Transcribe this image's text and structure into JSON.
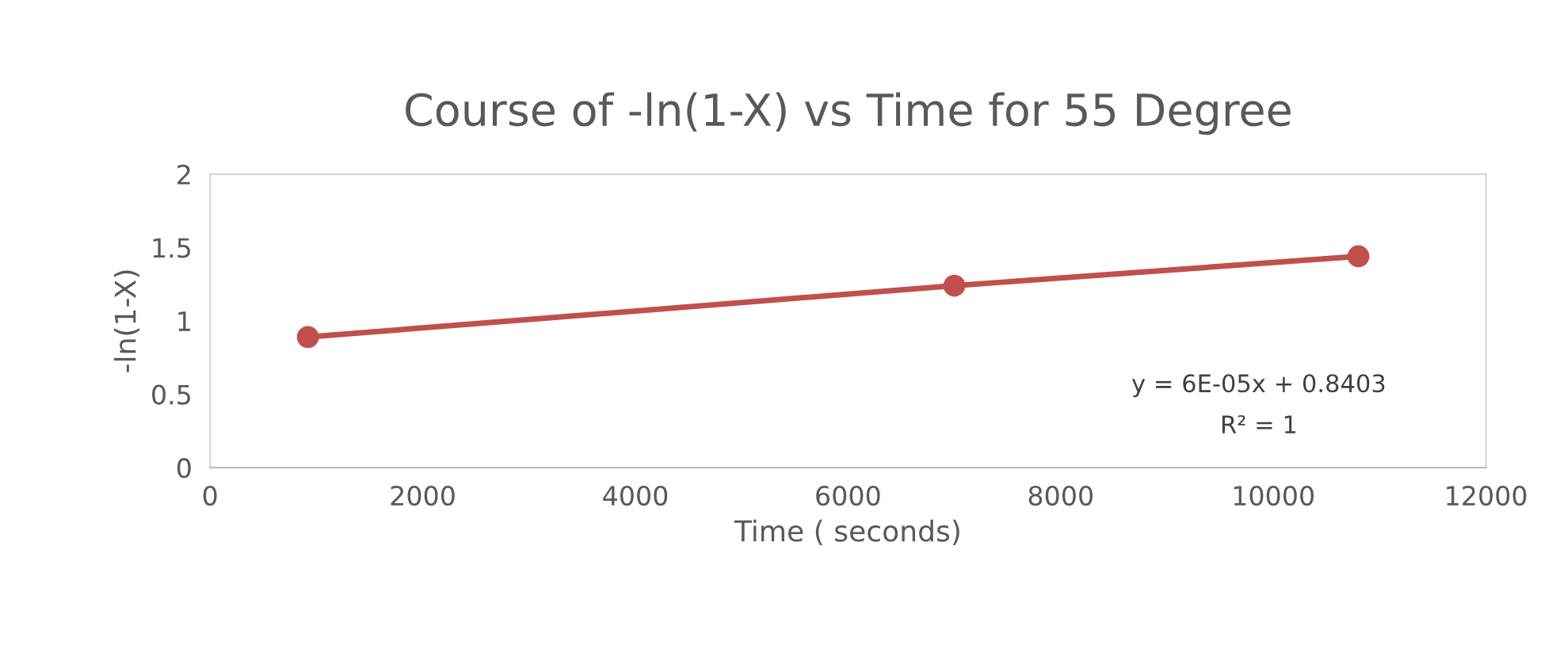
{
  "chart_data": {
    "type": "line",
    "title": "Course of -ln(1-X) vs Time for 55 Degree",
    "xlabel": "Time ( seconds)",
    "ylabel": "-ln(1-X)",
    "x": [
      920,
      7000,
      10800
    ],
    "series": [
      {
        "color": "#c0504d",
        "values": [
          0.89,
          1.24,
          1.44
        ]
      }
    ],
    "xlim": [
      0,
      12000
    ],
    "xticks": [
      0,
      2000,
      4000,
      6000,
      8000,
      10000,
      12000
    ],
    "ylim": [
      0,
      2
    ],
    "yticks": [
      0,
      0.5,
      1,
      1.5,
      2
    ],
    "annotations": [
      "y = 6E-05x + 0.8403",
      "R² = 1"
    ],
    "marker": "circle",
    "line_style": "solid",
    "grid": false,
    "legend": false
  }
}
